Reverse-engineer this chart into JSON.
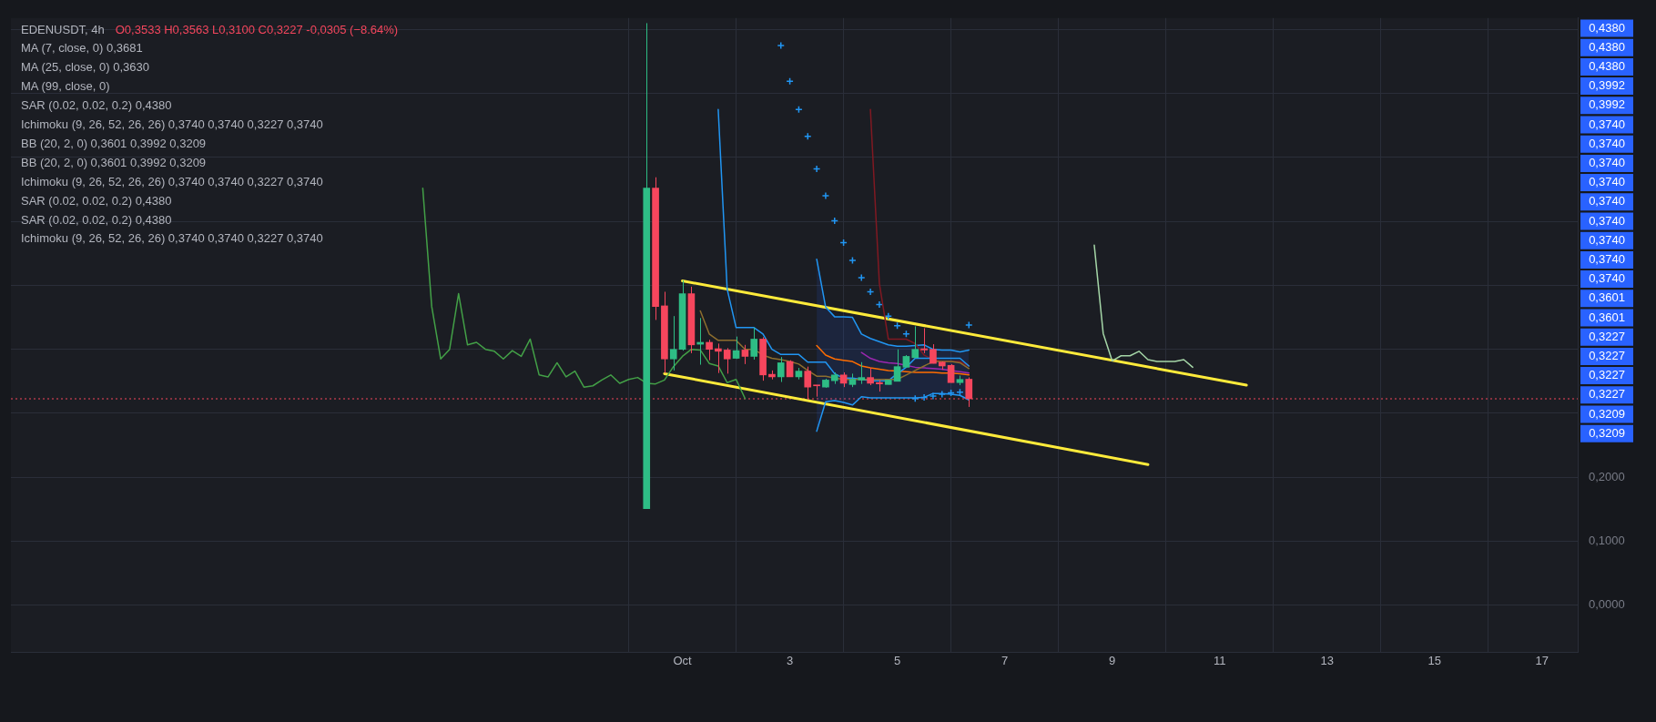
{
  "chart_data": {
    "type": "candlestick",
    "title": "EDENUSDT, 4h",
    "subtitle": "O0,3533 H0,3563 L0,3100 C0,3227 -0,0305 (−8.64%)",
    "x": [
      "--09-30T08:00",
      "--09-30T12:00",
      "--09-30T16:00",
      "--09-30T20:00",
      "--10-01T00:00",
      "--10-01T04:00",
      "--10-01T08:00",
      "--10-01T12:00",
      "--10-01T16:00",
      "--10-01T20:00",
      "--10-02T00:00",
      "--10-02T04:00",
      "--10-02T08:00",
      "--10-02T12:00",
      "--10-02T16:00",
      "--10-02T20:00",
      "--10-03T00:00",
      "--10-03T04:00",
      "--10-03T08:00",
      "--10-03T12:00",
      "--10-03T16:00",
      "--10-03T20:00",
      "--10-04T00:00",
      "--10-04T04:00",
      "--10-04T08:00",
      "--10-04T12:00",
      "--10-04T16:00",
      "--10-04T20:00",
      "--10-05T00:00",
      "--10-05T04:00",
      "--10-05T08:00",
      "--10-05T12:00",
      "--10-05T16:00",
      "--10-05T20:00",
      "--10-06T00:00",
      "--10-06T04:00",
      "--10-06T08:00"
    ],
    "ohlc": [
      [
        0.151,
        0.91,
        0.151,
        0.652
      ],
      [
        0.652,
        0.669,
        0.446,
        0.467
      ],
      [
        0.468,
        0.49,
        0.363,
        0.385
      ],
      [
        0.385,
        0.452,
        0.367,
        0.4
      ],
      [
        0.4,
        0.508,
        0.398,
        0.487
      ],
      [
        0.487,
        0.498,
        0.394,
        0.407
      ],
      [
        0.408,
        0.449,
        0.376,
        0.411
      ],
      [
        0.411,
        0.415,
        0.383,
        0.4
      ],
      [
        0.401,
        0.409,
        0.363,
        0.397
      ],
      [
        0.399,
        0.402,
        0.362,
        0.385
      ],
      [
        0.386,
        0.42,
        0.385,
        0.398
      ],
      [
        0.399,
        0.407,
        0.377,
        0.389
      ],
      [
        0.389,
        0.434,
        0.384,
        0.416
      ],
      [
        0.416,
        0.419,
        0.351,
        0.36
      ],
      [
        0.361,
        0.367,
        0.353,
        0.357
      ],
      [
        0.357,
        0.388,
        0.349,
        0.379
      ],
      [
        0.381,
        0.383,
        0.357,
        0.357
      ],
      [
        0.357,
        0.371,
        0.353,
        0.366
      ],
      [
        0.366,
        0.373,
        0.322,
        0.341
      ],
      [
        0.344,
        0.344,
        0.326,
        0.343
      ],
      [
        0.341,
        0.354,
        0.34,
        0.352
      ],
      [
        0.351,
        0.364,
        0.346,
        0.36
      ],
      [
        0.36,
        0.364,
        0.341,
        0.347
      ],
      [
        0.345,
        0.362,
        0.341,
        0.353
      ],
      [
        0.352,
        0.38,
        0.346,
        0.356
      ],
      [
        0.356,
        0.371,
        0.344,
        0.347
      ],
      [
        0.348,
        0.352,
        0.334,
        0.346
      ],
      [
        0.345,
        0.352,
        0.345,
        0.352
      ],
      [
        0.35,
        0.4,
        0.35,
        0.373
      ],
      [
        0.372,
        0.391,
        0.372,
        0.389
      ],
      [
        0.387,
        0.436,
        0.387,
        0.4
      ],
      [
        0.401,
        0.433,
        0.394,
        0.399
      ],
      [
        0.4,
        0.408,
        0.378,
        0.378
      ],
      [
        0.38,
        0.381,
        0.368,
        0.374
      ],
      [
        0.375,
        0.377,
        0.348,
        0.348
      ],
      [
        0.348,
        0.359,
        0.344,
        0.353
      ],
      [
        0.3533,
        0.3563,
        0.31,
        0.3227
      ]
    ],
    "colors": [
      "#2ebd85",
      "#f6465d",
      "#f6465d",
      "#2ebd85",
      "#2ebd85",
      "#f6465d",
      "#2ebd85",
      "#f6465d",
      "#f6465d",
      "#f6465d",
      "#2ebd85",
      "#f6465d",
      "#2ebd85",
      "#f6465d",
      "#f6465d",
      "#2ebd85",
      "#f6465d",
      "#2ebd85",
      "#f6465d",
      "#f6465d",
      "#2ebd85",
      "#2ebd85",
      "#f6465d",
      "#2ebd85",
      "#2ebd85",
      "#f6465d",
      "#f6465d",
      "#2ebd85",
      "#2ebd85",
      "#2ebd85",
      "#2ebd85",
      "#f6465d",
      "#f6465d",
      "#f6465d",
      "#f6465d",
      "#2ebd85",
      "#f6465d"
    ],
    "marker": "none",
    "series": [
      {
        "type": "line",
        "color": "#43a047",
        "x": [
          "--09-26T04:00",
          "--09-26T08:00",
          "--09-26T12:00",
          "--09-26T16:00",
          "--09-26T20:00",
          "--09-27T00:00",
          "--09-27T04:00",
          "--09-27T08:00",
          "--09-27T12:00",
          "--09-27T16:00",
          "--09-27T20:00",
          "--09-28T00:00",
          "--09-28T04:00",
          "--09-28T08:00",
          "--09-28T12:00",
          "--09-28T16:00",
          "--09-28T20:00",
          "--09-29T00:00",
          "--09-29T04:00",
          "--09-29T08:00",
          "--09-29T12:00",
          "--09-29T16:00",
          "--09-29T20:00",
          "--09-30T00:00",
          "--09-30T04:00",
          "--09-30T08:00",
          "--09-30T12:00",
          "--09-30T16:00",
          "--09-30T20:00",
          "--10-01T00:00",
          "--10-01T04:00",
          "--10-01T08:00",
          "--10-01T12:00",
          "--10-01T16:00",
          "--10-01T20:00",
          "--10-02T00:00",
          "--10-02T04:00"
        ],
        "values": [
          0.652,
          0.467,
          0.385,
          0.4,
          0.487,
          0.407,
          0.411,
          0.4,
          0.397,
          0.385,
          0.398,
          0.389,
          0.416,
          0.36,
          0.357,
          0.379,
          0.357,
          0.366,
          0.341,
          0.343,
          0.352,
          0.36,
          0.347,
          0.353,
          0.356,
          0.347,
          0.346,
          0.352,
          0.373,
          0.389,
          0.4,
          0.399,
          0.378,
          0.374,
          0.348,
          0.353,
          0.323
        ]
      },
      {
        "type": "line",
        "color": "#a5d6a7",
        "x": [
          "--10-08T16:00",
          "--10-08T20:00",
          "--10-09T00:00",
          "--10-09T04:00",
          "--10-09T08:00",
          "--10-09T12:00",
          "--10-09T16:00",
          "--10-09T20:00",
          "--10-10T00:00",
          "--10-10T04:00",
          "--10-10T08:00",
          "--10-10T12:00"
        ],
        "values": [
          0.563,
          0.425,
          0.382,
          0.39,
          0.39,
          0.397,
          0.384,
          0.381,
          0.381,
          0.381,
          0.384,
          0.372
        ]
      },
      {
        "type": "line",
        "color": "#8d6e2e",
        "values": [
          null,
          null,
          null,
          null,
          null,
          null,
          0.46,
          0.424,
          0.414,
          0.414,
          0.414,
          0.4,
          0.4,
          0.391,
          0.386,
          0.384,
          0.381,
          0.377,
          0.367,
          0.358,
          0.358,
          0.355,
          0.353,
          0.353,
          0.353,
          0.353,
          0.353,
          0.353,
          0.353,
          0.36,
          0.367,
          0.374,
          0.381,
          0.381,
          0.381,
          0.379,
          0.37
        ]
      },
      {
        "type": "line",
        "color": "#9c27b0",
        "values": [
          null,
          null,
          null,
          null,
          null,
          null,
          null,
          null,
          null,
          null,
          null,
          null,
          null,
          null,
          null,
          null,
          null,
          null,
          null,
          null,
          null,
          null,
          null,
          null,
          0.395,
          0.386,
          0.381,
          0.379,
          0.378,
          0.375,
          0.372,
          0.371,
          0.37,
          0.369,
          0.367,
          0.365,
          0.363
        ]
      },
      {
        "type": "line",
        "color": "#2196f3",
        "values": [
          null,
          null,
          null,
          null,
          null,
          null,
          null,
          null,
          0.775,
          0.494,
          0.434,
          0.434,
          0.434,
          0.424,
          0.4,
          0.392,
          0.392,
          0.392,
          0.38,
          0.38,
          0.38,
          0.362,
          0.355,
          0.355,
          0.353,
          0.351,
          0.351,
          0.351,
          0.362,
          0.372,
          0.386,
          0.386,
          0.386,
          0.386,
          0.386,
          0.386,
          0.374
        ]
      },
      {
        "type": "line",
        "color": "#801922",
        "values": [
          null,
          null,
          null,
          null,
          null,
          null,
          null,
          null,
          null,
          null,
          null,
          null,
          null,
          null,
          null,
          null,
          null,
          null,
          null,
          null,
          null,
          null,
          null,
          null,
          null,
          0.775,
          0.503,
          0.416,
          0.416,
          0.416,
          0.409,
          0.391,
          0.384,
          0.381,
          0.381,
          0.381,
          0.374
        ]
      },
      {
        "type": "line",
        "color": "#ff6d00",
        "values": [
          null,
          null,
          null,
          null,
          null,
          null,
          null,
          null,
          null,
          null,
          null,
          null,
          null,
          null,
          null,
          null,
          null,
          null,
          null,
          0.406,
          0.391,
          0.385,
          0.383,
          0.381,
          0.374,
          0.371,
          0.369,
          0.367,
          0.366,
          0.365,
          0.364,
          0.364,
          0.364,
          0.363,
          0.363,
          0.362,
          0.36
        ],
        "lower": [
          null,
          null,
          null,
          null,
          null,
          null,
          null,
          null,
          null,
          null,
          null,
          null,
          null,
          null,
          null,
          null,
          null,
          null,
          null,
          0.272,
          0.318,
          0.32,
          0.317,
          0.313,
          0.326,
          0.324,
          0.324,
          0.324,
          0.324,
          0.324,
          0.324,
          0.325,
          0.331,
          0.331,
          0.33,
          0.328,
          0.321
        ],
        "upper": [
          null,
          null,
          null,
          null,
          null,
          null,
          null,
          null,
          null,
          null,
          null,
          null,
          null,
          null,
          null,
          null,
          null,
          null,
          null,
          0.541,
          0.466,
          0.451,
          0.451,
          0.45,
          0.424,
          0.417,
          0.412,
          0.407,
          0.405,
          0.405,
          0.406,
          0.407,
          0.4,
          0.399,
          0.399,
          0.396,
          0.399
        ]
      },
      {
        "type": "line",
        "color": "#2196f3",
        "values": [
          null,
          null,
          null,
          null,
          null,
          null,
          null,
          null,
          null,
          null,
          null,
          null,
          null,
          null,
          null,
          null,
          null,
          null,
          null,
          0.541,
          0.466,
          0.451,
          0.451,
          0.45,
          0.424,
          0.417,
          0.412,
          0.407,
          0.405,
          0.405,
          0.406,
          0.407,
          0.4,
          0.399,
          0.399,
          0.396,
          0.399
        ]
      },
      {
        "type": "line",
        "color": "#2196f3",
        "values": [
          null,
          null,
          null,
          null,
          null,
          null,
          null,
          null,
          null,
          null,
          null,
          null,
          null,
          null,
          null,
          null,
          null,
          null,
          null,
          0.272,
          0.318,
          0.32,
          0.317,
          0.313,
          0.326,
          0.324,
          0.324,
          0.324,
          0.324,
          0.324,
          0.324,
          0.325,
          0.331,
          0.331,
          0.33,
          0.328,
          0.321
        ]
      },
      {
        "type": "scatter",
        "marker": "cross",
        "color": "#2196f3",
        "values": [
          null,
          null,
          null,
          null,
          null,
          null,
          null,
          null,
          null,
          null,
          null,
          null,
          null,
          null,
          null,
          0.875,
          0.819,
          0.775,
          0.733,
          0.682,
          0.64,
          0.601,
          0.567,
          0.539,
          0.512,
          0.49,
          0.47,
          0.452,
          0.437,
          0.424,
          0.323,
          0.325,
          0.327,
          0.33,
          0.332,
          0.333,
          0.438
        ]
      },
      {
        "type": "line",
        "color": "#ffeb3b",
        "x": [
          "--10-01T00:00",
          "--10-11T12:00"
        ],
        "values": [
          0.507,
          0.344
        ]
      },
      {
        "type": "line",
        "color": "#ffeb3b",
        "x": [
          "--09-30T16:00",
          "--10-09T16:00"
        ],
        "values": [
          0.362,
          0.22
        ]
      }
    ],
    "xlim": [
      "--09-18T12:00",
      "--10-17T16:00"
    ],
    "xticks": [
      {
        "value": "--10-01",
        "label": "Oct"
      },
      {
        "value": "--10-03",
        "label": "3"
      },
      {
        "value": "--10-05",
        "label": "5"
      },
      {
        "value": "--10-07",
        "label": "7"
      },
      {
        "value": "--10-09",
        "label": "9"
      },
      {
        "value": "--10-11",
        "label": "11"
      },
      {
        "value": "--10-13",
        "label": "13"
      },
      {
        "value": "--10-15",
        "label": "15"
      },
      {
        "value": "--10-17",
        "label": "17"
      }
    ],
    "ylim": [
      -0.073,
      0.918
    ],
    "yticks": [
      {
        "value": 0,
        "label": "0,0000"
      },
      {
        "value": 0.1,
        "label": "0,1000"
      },
      {
        "value": 0.2,
        "label": "0,2000"
      },
      {
        "value": 0.3,
        "label": null
      },
      {
        "value": 0.4,
        "label": null
      },
      {
        "value": 0.5,
        "label": null
      },
      {
        "value": 0.6,
        "label": null
      },
      {
        "value": 0.7,
        "label": null
      },
      {
        "value": 0.8,
        "label": null
      },
      {
        "value": 0.9,
        "label": null
      }
    ],
    "grid": true,
    "ref_lines": [
      {
        "axis": "y",
        "value": 0.3227,
        "color": "#f6465d",
        "line_style": "dotted"
      }
    ],
    "annotations": [
      "MA (7, close, 0) 0,3681",
      "MA (25, close, 0) 0,3630",
      "MA (99, close, 0)",
      "SAR (0.02, 0.02, 0.2) 0,4380",
      "Ichimoku (9, 26, 52, 26, 26) 0,3740 0,3740 0,3227 0,3740",
      "BB (20, 2, 0) 0,3601 0,3992 0,3209",
      "BB (20, 2, 0) 0,3601 0,3992 0,3209",
      "Ichimoku (9, 26, 52, 26, 26) 0,3740 0,3740 0,3227 0,3740",
      "SAR (0.02, 0.02, 0.2) 0,4380",
      "SAR (0.02, 0.02, 0.2) 0,4380",
      "Ichimoku (9, 26, 52, 26, 26) 0,3740 0,3740 0,3227 0,3740",
      "0,4380",
      "0,4380",
      "0,4380",
      "0,3992",
      "0,3992",
      "0,3740",
      "0,3740",
      "0,3740",
      "0,3740",
      "0,3740",
      "0,3740",
      "0,3740",
      "0,3740",
      "0,3740",
      "0,3601",
      "0,3601",
      "0,3227",
      "0,3227",
      "0,3227",
      "0,3227",
      "0,3209",
      "0,3209"
    ]
  }
}
